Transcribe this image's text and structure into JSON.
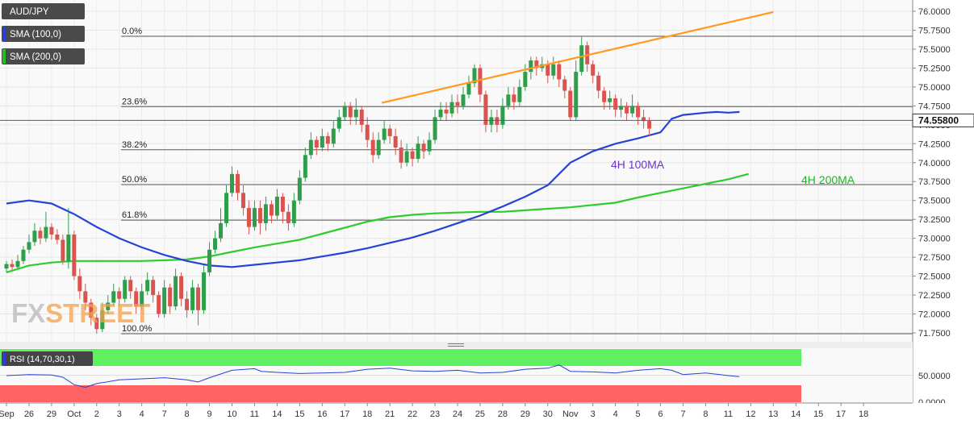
{
  "chart_data": {
    "type": "candlestick",
    "symbol": "AUD/JPY",
    "legend": [
      {
        "label": "AUD/JPY",
        "color": "#4a4a4a"
      },
      {
        "label": "SMA (100,0)",
        "color": "#2b3fd6"
      },
      {
        "label": "SMA (200,0)",
        "color": "#1fbf1f"
      }
    ],
    "y_ticks": [
      "76.0000",
      "75.7500",
      "75.5000",
      "75.2500",
      "75.0000",
      "74.7500",
      "74.5000",
      "74.2500",
      "74.0000",
      "73.7500",
      "73.5000",
      "73.2500",
      "73.0000",
      "72.7500",
      "72.5000",
      "72.2500",
      "72.0000",
      "71.7500"
    ],
    "ylim": [
      71.65,
      76.1
    ],
    "x_labels": [
      "Sep",
      "26",
      "29",
      "Oct",
      "2",
      "3",
      "4",
      "7",
      "8",
      "9",
      "10",
      "11",
      "14",
      "15",
      "16",
      "17",
      "18",
      "21",
      "22",
      "23",
      "24",
      "25",
      "28",
      "29",
      "30",
      "Nov",
      "3",
      "4",
      "5",
      "6",
      "7",
      "8",
      "11",
      "12",
      "13",
      "14",
      "15",
      "17",
      "18"
    ],
    "last_price": "74.55800",
    "fib_levels": [
      {
        "label": "0.0%",
        "value": 75.67
      },
      {
        "label": "23.6%",
        "value": 74.74
      },
      {
        "label": "38.2%",
        "value": 74.17
      },
      {
        "label": "50.0%",
        "value": 73.71
      },
      {
        "label": "61.8%",
        "value": 73.24
      },
      {
        "label": "100.0%",
        "value": 71.74
      }
    ],
    "trendline": {
      "from": {
        "x": "21",
        "y": 74.79
      },
      "to": {
        "x": "13",
        "y": 75.99
      }
    },
    "annotations": [
      {
        "text": "4H 100MA",
        "color": "#6b35c9"
      },
      {
        "text": "4H 200MA",
        "color": "#22b522"
      }
    ],
    "sma100": [
      [
        0,
        73.46
      ],
      [
        1,
        73.5
      ],
      [
        2,
        73.46
      ],
      [
        3,
        73.32
      ],
      [
        4,
        73.15
      ],
      [
        5,
        73.0
      ],
      [
        6,
        72.88
      ],
      [
        7,
        72.78
      ],
      [
        8,
        72.7
      ],
      [
        9,
        72.64
      ],
      [
        10,
        72.62
      ],
      [
        11,
        72.65
      ],
      [
        12,
        72.68
      ],
      [
        13,
        72.71
      ],
      [
        14,
        72.76
      ],
      [
        15,
        72.81
      ],
      [
        16,
        72.87
      ],
      [
        17,
        72.94
      ],
      [
        18,
        73.01
      ],
      [
        19,
        73.1
      ],
      [
        20,
        73.2
      ],
      [
        21,
        73.3
      ],
      [
        22,
        73.42
      ],
      [
        23,
        73.55
      ],
      [
        24,
        73.7
      ],
      [
        24.5,
        73.85
      ],
      [
        25,
        74.0
      ],
      [
        26,
        74.15
      ],
      [
        27,
        74.25
      ],
      [
        28,
        74.32
      ],
      [
        29,
        74.4
      ],
      [
        29.5,
        74.58
      ],
      [
        30,
        74.63
      ],
      [
        31,
        74.66
      ],
      [
        31.5,
        74.67
      ],
      [
        32,
        74.66
      ],
      [
        32.5,
        74.67
      ]
    ],
    "sma200": [
      [
        0,
        72.55
      ],
      [
        1,
        72.64
      ],
      [
        2,
        72.68
      ],
      [
        3,
        72.7
      ],
      [
        4,
        72.7
      ],
      [
        5,
        72.7
      ],
      [
        6,
        72.7
      ],
      [
        7,
        72.71
      ],
      [
        8,
        72.72
      ],
      [
        9,
        72.76
      ],
      [
        10,
        72.82
      ],
      [
        11,
        72.88
      ],
      [
        12,
        72.93
      ],
      [
        13,
        72.98
      ],
      [
        14,
        73.06
      ],
      [
        15,
        73.14
      ],
      [
        16,
        73.22
      ],
      [
        17,
        73.28
      ],
      [
        18,
        73.31
      ],
      [
        19,
        73.33
      ],
      [
        20,
        73.34
      ],
      [
        21,
        73.35
      ],
      [
        22,
        73.35
      ],
      [
        23,
        73.37
      ],
      [
        24,
        73.39
      ],
      [
        25,
        73.41
      ],
      [
        26,
        73.44
      ],
      [
        27,
        73.47
      ],
      [
        28,
        73.54
      ],
      [
        29,
        73.6
      ],
      [
        30,
        73.66
      ],
      [
        31,
        73.72
      ],
      [
        32,
        73.78
      ],
      [
        32.9,
        73.85
      ]
    ],
    "rsi": {
      "label": "RSI (14,70,30,1)",
      "ticks": [
        "50.0000",
        "0.0000"
      ],
      "overbought": 70,
      "oversold": 30,
      "values": [
        [
          0,
          50
        ],
        [
          1,
          52
        ],
        [
          2,
          51
        ],
        [
          2.5,
          47
        ],
        [
          3,
          33
        ],
        [
          3.5,
          28
        ],
        [
          4,
          35
        ],
        [
          5,
          42
        ],
        [
          6,
          44
        ],
        [
          7,
          46
        ],
        [
          8,
          42
        ],
        [
          8.5,
          38
        ],
        [
          9,
          46
        ],
        [
          10,
          60
        ],
        [
          11,
          63
        ],
        [
          11.3,
          58
        ],
        [
          12,
          56
        ],
        [
          13,
          54
        ],
        [
          14,
          55
        ],
        [
          15,
          56
        ],
        [
          16,
          62
        ],
        [
          17,
          64
        ],
        [
          18,
          59
        ],
        [
          19,
          58
        ],
        [
          20,
          60
        ],
        [
          21,
          55
        ],
        [
          22,
          56
        ],
        [
          23,
          62
        ],
        [
          24,
          64
        ],
        [
          24.5,
          70
        ],
        [
          25,
          58
        ],
        [
          26,
          57
        ],
        [
          27,
          55
        ],
        [
          28,
          60
        ],
        [
          29,
          63
        ],
        [
          29.5,
          60
        ],
        [
          30,
          52
        ],
        [
          31,
          55
        ],
        [
          32,
          50
        ],
        [
          32.5,
          48
        ]
      ]
    },
    "candles": [
      [
        0,
        72.6,
        72.66,
        72.7,
        72.55
      ],
      [
        0.25,
        72.66,
        72.62,
        72.72,
        72.58
      ],
      [
        0.5,
        72.62,
        72.7,
        72.78,
        72.6
      ],
      [
        0.75,
        72.7,
        72.85,
        72.9,
        72.66
      ],
      [
        1,
        72.85,
        72.95,
        73.05,
        72.8
      ],
      [
        1.25,
        72.95,
        73.1,
        73.2,
        72.9
      ],
      [
        1.5,
        73.1,
        73.0,
        73.15,
        72.92
      ],
      [
        1.75,
        73.0,
        73.15,
        73.35,
        72.95
      ],
      [
        2,
        73.15,
        73.05,
        73.2,
        72.98
      ],
      [
        2.25,
        73.05,
        72.98,
        73.12,
        72.92
      ],
      [
        2.5,
        72.98,
        72.7,
        73.05,
        72.65
      ],
      [
        2.75,
        72.7,
        73.05,
        73.4,
        72.6
      ],
      [
        3,
        73.05,
        72.5,
        73.1,
        72.45
      ],
      [
        3.25,
        72.5,
        72.3,
        72.6,
        72.2
      ],
      [
        3.5,
        72.3,
        72.15,
        72.4,
        72.05
      ],
      [
        3.75,
        72.15,
        71.95,
        72.2,
        71.85
      ],
      [
        4,
        71.95,
        71.8,
        72.0,
        71.74
      ],
      [
        4.25,
        71.8,
        72.05,
        72.15,
        71.76
      ],
      [
        4.5,
        72.05,
        72.15,
        72.25,
        72.0
      ],
      [
        4.75,
        72.15,
        72.3,
        72.4,
        72.1
      ],
      [
        5,
        72.3,
        72.2,
        72.35,
        72.1
      ],
      [
        5.25,
        72.2,
        72.45,
        72.5,
        72.15
      ],
      [
        5.5,
        72.45,
        72.3,
        72.5,
        72.2
      ],
      [
        5.75,
        72.3,
        72.1,
        72.35,
        72.0
      ],
      [
        6,
        72.1,
        72.3,
        72.4,
        72.05
      ],
      [
        6.25,
        72.3,
        72.45,
        72.55,
        72.25
      ],
      [
        6.5,
        72.45,
        72.25,
        72.5,
        72.15
      ],
      [
        6.75,
        72.25,
        72.0,
        72.3,
        71.95
      ],
      [
        7,
        72.0,
        72.35,
        72.45,
        71.95
      ],
      [
        7.25,
        72.35,
        72.1,
        72.4,
        72.0
      ],
      [
        7.5,
        72.1,
        72.5,
        72.6,
        72.05
      ],
      [
        7.75,
        72.5,
        72.2,
        72.55,
        72.1
      ],
      [
        8,
        72.2,
        72.05,
        72.3,
        71.95
      ],
      [
        8.25,
        72.05,
        72.35,
        72.45,
        72.0
      ],
      [
        8.5,
        72.35,
        72.05,
        72.4,
        71.85
      ],
      [
        8.75,
        72.05,
        72.55,
        72.65,
        72.0
      ],
      [
        9,
        72.55,
        72.85,
        72.95,
        72.5
      ],
      [
        9.25,
        72.85,
        73.0,
        73.1,
        72.8
      ],
      [
        9.5,
        73.0,
        73.2,
        73.4,
        72.95
      ],
      [
        9.75,
        73.2,
        73.6,
        73.7,
        73.15
      ],
      [
        10,
        73.6,
        73.85,
        73.95,
        73.55
      ],
      [
        10.25,
        73.85,
        73.6,
        73.9,
        73.5
      ],
      [
        10.5,
        73.6,
        73.4,
        73.7,
        73.3
      ],
      [
        10.75,
        73.4,
        73.15,
        73.5,
        73.05
      ],
      [
        11,
        73.15,
        73.4,
        73.5,
        73.1
      ],
      [
        11.25,
        73.4,
        73.2,
        73.5,
        73.05
      ],
      [
        11.5,
        73.2,
        73.45,
        73.55,
        73.1
      ],
      [
        11.75,
        73.45,
        73.3,
        73.5,
        73.2
      ],
      [
        12,
        73.3,
        73.55,
        73.65,
        73.25
      ],
      [
        12.25,
        73.55,
        73.35,
        73.6,
        73.2
      ],
      [
        12.5,
        73.35,
        73.2,
        73.45,
        73.1
      ],
      [
        12.75,
        73.2,
        73.5,
        73.6,
        73.15
      ],
      [
        13,
        73.5,
        73.8,
        73.9,
        73.45
      ],
      [
        13.25,
        73.8,
        74.1,
        74.2,
        73.75
      ],
      [
        13.5,
        74.1,
        74.3,
        74.4,
        74.05
      ],
      [
        13.75,
        74.3,
        74.2,
        74.35,
        74.1
      ],
      [
        14,
        74.2,
        74.35,
        74.45,
        74.15
      ],
      [
        14.25,
        74.35,
        74.25,
        74.4,
        74.15
      ],
      [
        14.5,
        74.25,
        74.45,
        74.55,
        74.2
      ],
      [
        14.75,
        74.45,
        74.6,
        74.7,
        74.4
      ],
      [
        15,
        74.6,
        74.75,
        74.8,
        74.55
      ],
      [
        15.25,
        74.75,
        74.6,
        74.8,
        74.5
      ],
      [
        15.5,
        74.6,
        74.7,
        74.85,
        74.5
      ],
      [
        15.75,
        74.7,
        74.5,
        74.75,
        74.4
      ],
      [
        16,
        74.5,
        74.3,
        74.6,
        74.2
      ],
      [
        16.25,
        74.3,
        74.1,
        74.4,
        74.0
      ],
      [
        16.5,
        74.1,
        74.3,
        74.4,
        74.05
      ],
      [
        16.75,
        74.3,
        74.45,
        74.55,
        74.25
      ],
      [
        17,
        74.45,
        74.35,
        74.5,
        74.25
      ],
      [
        17.25,
        74.35,
        74.2,
        74.45,
        74.1
      ],
      [
        17.5,
        74.2,
        74.0,
        74.3,
        73.92
      ],
      [
        17.75,
        74.0,
        74.15,
        74.25,
        73.95
      ],
      [
        18,
        74.15,
        74.05,
        74.2,
        73.95
      ],
      [
        18.25,
        74.05,
        74.25,
        74.35,
        74.0
      ],
      [
        18.5,
        74.25,
        74.15,
        74.3,
        74.05
      ],
      [
        18.75,
        74.15,
        74.3,
        74.4,
        74.1
      ],
      [
        19,
        74.3,
        74.6,
        74.7,
        74.25
      ],
      [
        19.25,
        74.6,
        74.7,
        74.8,
        74.55
      ],
      [
        19.5,
        74.7,
        74.65,
        74.8,
        74.55
      ],
      [
        19.75,
        74.65,
        74.8,
        74.9,
        74.6
      ],
      [
        20,
        74.8,
        74.75,
        74.9,
        74.65
      ],
      [
        20.25,
        74.75,
        74.9,
        75.0,
        74.7
      ],
      [
        20.5,
        74.9,
        75.05,
        75.15,
        74.85
      ],
      [
        20.75,
        75.05,
        75.25,
        75.3,
        75.0
      ],
      [
        21,
        75.25,
        74.9,
        75.3,
        74.8
      ],
      [
        21.25,
        74.9,
        74.5,
        74.95,
        74.4
      ],
      [
        21.5,
        74.5,
        74.6,
        74.7,
        74.4
      ],
      [
        21.75,
        74.6,
        74.5,
        74.7,
        74.4
      ],
      [
        22,
        74.5,
        74.75,
        74.85,
        74.45
      ],
      [
        22.25,
        74.75,
        74.9,
        75.0,
        74.7
      ],
      [
        22.5,
        74.9,
        74.8,
        75.0,
        74.7
      ],
      [
        22.75,
        74.8,
        75.0,
        75.1,
        74.75
      ],
      [
        23,
        75.0,
        75.2,
        75.3,
        74.95
      ],
      [
        23.25,
        75.2,
        75.35,
        75.4,
        75.1
      ],
      [
        23.5,
        75.35,
        75.25,
        75.4,
        75.15
      ],
      [
        23.75,
        75.25,
        75.3,
        75.4,
        75.2
      ],
      [
        24,
        75.3,
        75.15,
        75.35,
        75.05
      ],
      [
        24.25,
        75.15,
        75.3,
        75.4,
        75.1
      ],
      [
        24.5,
        75.3,
        75.1,
        75.35,
        75.0
      ],
      [
        24.75,
        75.1,
        74.95,
        75.15,
        74.85
      ],
      [
        25,
        74.95,
        74.6,
        75.0,
        74.55
      ],
      [
        25.25,
        74.6,
        75.2,
        75.35,
        74.55
      ],
      [
        25.5,
        75.2,
        75.55,
        75.67,
        75.15
      ],
      [
        25.75,
        75.55,
        75.3,
        75.6,
        75.2
      ],
      [
        26,
        75.3,
        75.15,
        75.35,
        75.05
      ],
      [
        26.25,
        75.15,
        74.95,
        75.2,
        74.85
      ],
      [
        26.5,
        74.95,
        74.8,
        75.0,
        74.7
      ],
      [
        26.75,
        74.8,
        74.85,
        74.95,
        74.7
      ],
      [
        27,
        74.85,
        74.7,
        74.9,
        74.6
      ],
      [
        27.25,
        74.7,
        74.75,
        74.85,
        74.6
      ],
      [
        27.5,
        74.75,
        74.65,
        74.8,
        74.55
      ],
      [
        27.75,
        74.65,
        74.75,
        74.9,
        74.6
      ],
      [
        28,
        74.75,
        74.6,
        74.8,
        74.5
      ],
      [
        28.25,
        74.6,
        74.55,
        74.7,
        74.45
      ],
      [
        28.5,
        74.55,
        74.45,
        74.6,
        74.35
      ]
    ]
  }
}
